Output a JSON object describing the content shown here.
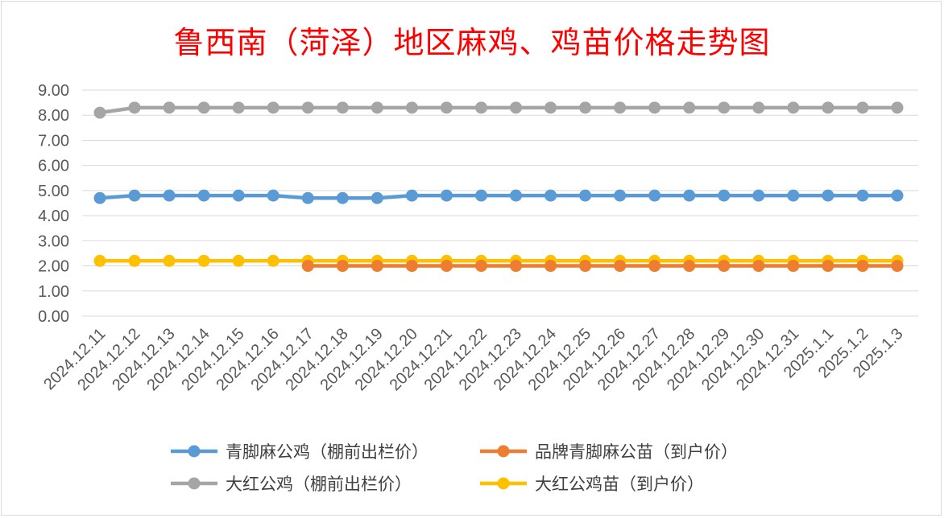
{
  "chart_data": {
    "type": "line",
    "title": "鲁西南（菏泽）地区麻鸡、鸡苗价格走势图",
    "xlabel": "",
    "ylabel": "",
    "ylim": [
      0,
      9
    ],
    "yticks": [
      "0.00",
      "1.00",
      "2.00",
      "3.00",
      "4.00",
      "5.00",
      "6.00",
      "7.00",
      "8.00",
      "9.00"
    ],
    "grid": true,
    "legend_position": "bottom",
    "categories": [
      "2024.12.11",
      "2024.12.12",
      "2024.12.13",
      "2024.12.14",
      "2024.12.15",
      "2024.12.16",
      "2024.12.17",
      "2024.12.18",
      "2024.12.19",
      "2024.12.20",
      "2024.12.21",
      "2024.12.22",
      "2024.12.23",
      "2024.12.24",
      "2024.12.25",
      "2024.12.26",
      "2024.12.27",
      "2024.12.28",
      "2024.12.29",
      "2024.12.30",
      "2024.12.31",
      "2025.1.1",
      "2025.1.2",
      "2025.1.3"
    ],
    "series": [
      {
        "name": "青脚麻公鸡（棚前出栏价）",
        "color": "#5b9bd5",
        "values": [
          4.7,
          4.8,
          4.8,
          4.8,
          4.8,
          4.8,
          4.7,
          4.7,
          4.7,
          4.8,
          4.8,
          4.8,
          4.8,
          4.8,
          4.8,
          4.8,
          4.8,
          4.8,
          4.8,
          4.8,
          4.8,
          4.8,
          4.8,
          4.8
        ]
      },
      {
        "name": "品牌青脚麻公苗（到户价）",
        "color": "#ed7d31",
        "values": [
          null,
          null,
          null,
          null,
          null,
          null,
          2.0,
          2.0,
          2.0,
          2.0,
          2.0,
          2.0,
          2.0,
          2.0,
          2.0,
          2.0,
          2.0,
          2.0,
          2.0,
          2.0,
          2.0,
          2.0,
          2.0,
          2.0
        ]
      },
      {
        "name": "大红公鸡（棚前出栏价）",
        "color": "#a5a5a5",
        "values": [
          8.1,
          8.3,
          8.3,
          8.3,
          8.3,
          8.3,
          8.3,
          8.3,
          8.3,
          8.3,
          8.3,
          8.3,
          8.3,
          8.3,
          8.3,
          8.3,
          8.3,
          8.3,
          8.3,
          8.3,
          8.3,
          8.3,
          8.3,
          8.3
        ]
      },
      {
        "name": "大红公鸡苗（到户价）",
        "color": "#ffc000",
        "values": [
          2.2,
          2.2,
          2.2,
          2.2,
          2.2,
          2.2,
          2.2,
          2.2,
          2.2,
          2.2,
          2.2,
          2.2,
          2.2,
          2.2,
          2.2,
          2.2,
          2.2,
          2.2,
          2.2,
          2.2,
          2.2,
          2.2,
          2.2,
          2.2
        ]
      }
    ]
  }
}
